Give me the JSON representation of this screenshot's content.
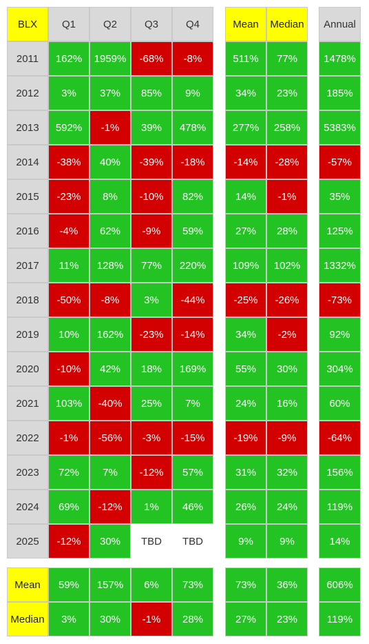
{
  "corner": "BLX",
  "quarter_headers": [
    "Q1",
    "Q2",
    "Q3",
    "Q4"
  ],
  "stat_headers": [
    "Mean",
    "Median"
  ],
  "annual_header": "Annual",
  "rows": [
    {
      "year": "2011",
      "q": [
        "162%",
        "1959%",
        "-68%",
        "-8%"
      ],
      "mean": "511%",
      "median": "77%",
      "annual": "1478%"
    },
    {
      "year": "2012",
      "q": [
        "3%",
        "37%",
        "85%",
        "9%"
      ],
      "mean": "34%",
      "median": "23%",
      "annual": "185%"
    },
    {
      "year": "2013",
      "q": [
        "592%",
        "-1%",
        "39%",
        "478%"
      ],
      "mean": "277%",
      "median": "258%",
      "annual": "5383%"
    },
    {
      "year": "2014",
      "q": [
        "-38%",
        "40%",
        "-39%",
        "-18%"
      ],
      "mean": "-14%",
      "median": "-28%",
      "annual": "-57%"
    },
    {
      "year": "2015",
      "q": [
        "-23%",
        "8%",
        "-10%",
        "82%"
      ],
      "mean": "14%",
      "median": "-1%",
      "annual": "35%"
    },
    {
      "year": "2016",
      "q": [
        "-4%",
        "62%",
        "-9%",
        "59%"
      ],
      "mean": "27%",
      "median": "28%",
      "annual": "125%"
    },
    {
      "year": "2017",
      "q": [
        "11%",
        "128%",
        "77%",
        "220%"
      ],
      "mean": "109%",
      "median": "102%",
      "annual": "1332%"
    },
    {
      "year": "2018",
      "q": [
        "-50%",
        "-8%",
        "3%",
        "-44%"
      ],
      "mean": "-25%",
      "median": "-26%",
      "annual": "-73%"
    },
    {
      "year": "2019",
      "q": [
        "10%",
        "162%",
        "-23%",
        "-14%"
      ],
      "mean": "34%",
      "median": "-2%",
      "annual": "92%"
    },
    {
      "year": "2020",
      "q": [
        "-10%",
        "42%",
        "18%",
        "169%"
      ],
      "mean": "55%",
      "median": "30%",
      "annual": "304%"
    },
    {
      "year": "2021",
      "q": [
        "103%",
        "-40%",
        "25%",
        "7%"
      ],
      "mean": "24%",
      "median": "16%",
      "annual": "60%"
    },
    {
      "year": "2022",
      "q": [
        "-1%",
        "-56%",
        "-3%",
        "-15%"
      ],
      "mean": "-19%",
      "median": "-9%",
      "annual": "-64%"
    },
    {
      "year": "2023",
      "q": [
        "72%",
        "7%",
        "-12%",
        "57%"
      ],
      "mean": "31%",
      "median": "32%",
      "annual": "156%"
    },
    {
      "year": "2024",
      "q": [
        "69%",
        "-12%",
        "1%",
        "46%"
      ],
      "mean": "26%",
      "median": "24%",
      "annual": "119%"
    },
    {
      "year": "2025",
      "q": [
        "-12%",
        "30%",
        "TBD",
        "TBD"
      ],
      "mean": "9%",
      "median": "9%",
      "annual": "14%"
    }
  ],
  "summary_rows": [
    {
      "label": "Mean",
      "q": [
        "59%",
        "157%",
        "6%",
        "73%"
      ],
      "mean": "73%",
      "median": "36%",
      "annual": "606%"
    },
    {
      "label": "Median",
      "q": [
        "3%",
        "30%",
        "-1%",
        "28%"
      ],
      "mean": "27%",
      "median": "23%",
      "annual": "119%"
    }
  ],
  "colors": {
    "positive": "#22c322",
    "negative": "#d20000",
    "header_gray": "#d9d9d9",
    "header_yellow": "#ffff00"
  }
}
